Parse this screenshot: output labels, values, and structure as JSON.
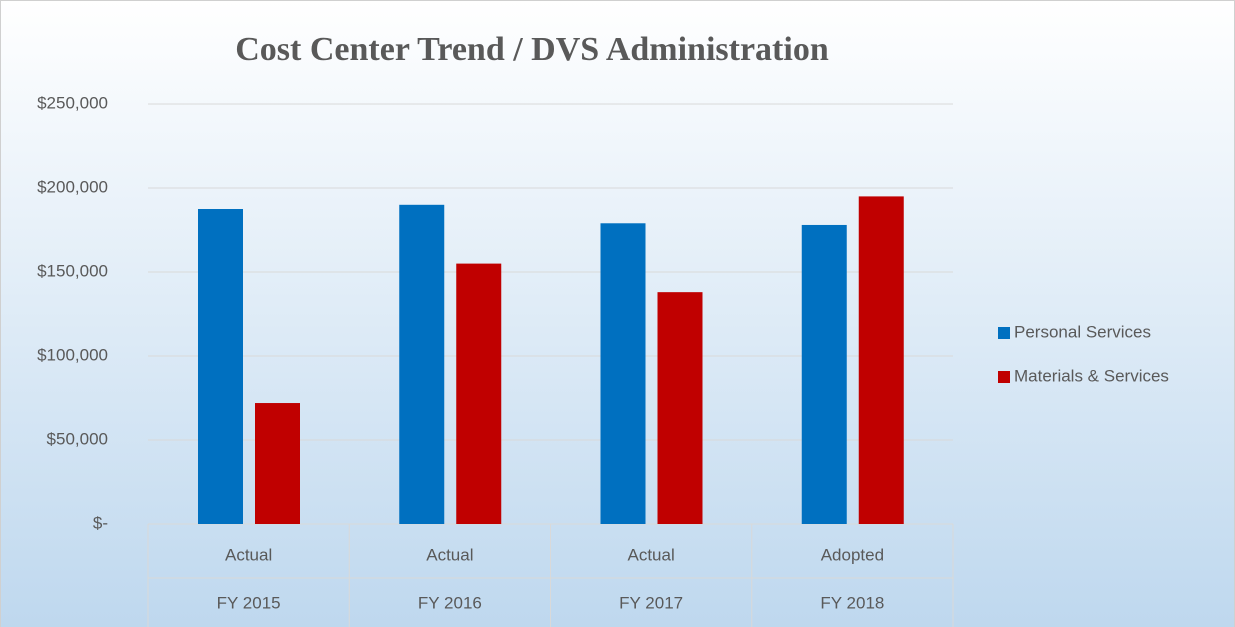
{
  "chart_data": {
    "type": "bar",
    "title": "Cost Center Trend / DVS Administration",
    "categories": [
      "Actual",
      "Actual",
      "Actual",
      "Adopted"
    ],
    "category_groups": [
      "FY 2015",
      "FY 2016",
      "FY 2017",
      "FY 2018"
    ],
    "series": [
      {
        "name": "Personal Services",
        "color": "#0070c0",
        "values": [
          187500,
          190000,
          179000,
          178000
        ]
      },
      {
        "name": "Materials & Services",
        "color": "#c00000",
        "values": [
          72000,
          155000,
          138000,
          195000
        ]
      }
    ],
    "ylim": [
      0,
      250000
    ],
    "yticks": [
      {
        "value": 0,
        "label": "$-"
      },
      {
        "value": 50000,
        "label": "$50,000"
      },
      {
        "value": 100000,
        "label": "$100,000"
      },
      {
        "value": 150000,
        "label": "$150,000"
      },
      {
        "value": 200000,
        "label": "$200,000"
      },
      {
        "value": 250000,
        "label": "$250,000"
      }
    ],
    "grid": true,
    "legend": "right"
  }
}
